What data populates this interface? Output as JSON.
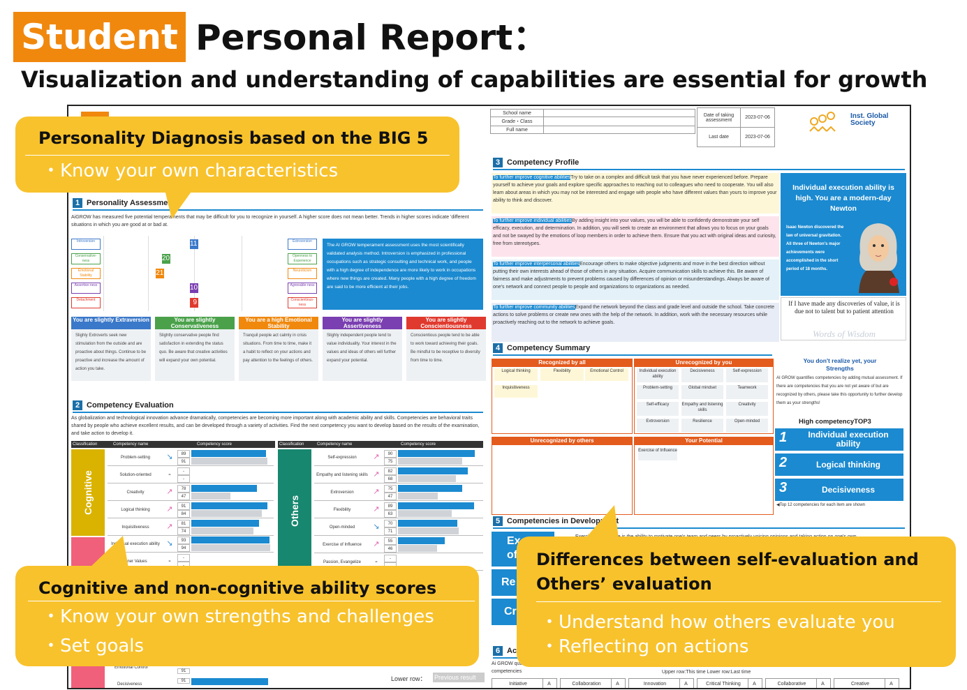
{
  "header": {
    "badge": "Student",
    "title": "Personal Report：",
    "subtitle": "Visualization and understanding of capabilities are essential for growth"
  },
  "colors": {
    "orange": "#f0880e",
    "callout": "#f8c22c",
    "blue": "#1b8ad0",
    "cognitive": "#d9b300",
    "others": "#18876f",
    "pink": "#f0607a"
  },
  "report": {
    "info": {
      "school_name": "School name",
      "grade_class": "Grade・Class",
      "full_name": "Full name",
      "date_label": "Date of taking assessment",
      "date_value": "2023-07-06",
      "last_label": "Last date",
      "last_value": "2023-07-06",
      "logo": "Inst. Global Society"
    },
    "sec1": {
      "num": "1",
      "title": "Personality Assessment",
      "intro": "AiGROW has measured five potential temperaments that may be difficult for you to recognize in yourself. A higher score does not mean better. Trends in higher scores indicate 'different situations in which you are good at or bad at.",
      "left_labels": [
        "Introversion",
        "Conservative-ness",
        "Emotional Stability",
        "Assertive-ness",
        "Detachment"
      ],
      "right_labels": [
        "Extroversion",
        "Openness to Experience",
        "Neuroticism",
        "Agreeable-ness",
        "Conscientious-ness"
      ],
      "scores": [
        11,
        20,
        21,
        10,
        9
      ],
      "info_text": "The AI GROW temperament assessment uses the most scientifically validated analysis method. Introversion is emphasized in professional occupations such as strategic consulting and technical work, and people with a high degree of independence are more likely to work in occupations where new things are created. Many people with a high degree of freedom are said to be more efficient at their jobs.",
      "traits": [
        {
          "title": "You are slightly Extraversion",
          "body": "Slighly Extroverts seek new stimulation from the outside and are proactive about things. Continue to be proactive and increase the amount of action you take.",
          "color": "#3a78c9"
        },
        {
          "title": "You are slightly Conservativeness",
          "body": "Slightly conservative people find satisfaction in extending the status quo. Be aware that creative activities will expand your own potential.",
          "color": "#4aa14a"
        },
        {
          "title": "You are a high Emotional Stability",
          "body": "Tranquil people act calmly in crisis situations. From time to time, make it a habit to reflect on your actions and pay attention to the feelings of others.",
          "color": "#f0880e"
        },
        {
          "title": "You are slightly Assertiveness",
          "body": "Slighly independent people tend to value individuality. Your interest in the values and ideas of others will further expand your potential.",
          "color": "#7a3fb0"
        },
        {
          "title": "You are slightly Conscientiousness",
          "body": "Conscientious people tend to be able to work toward achieving their goals. Be mindful to be receptive to diversity from time to time.",
          "color": "#e03a2e"
        }
      ]
    },
    "sec2": {
      "num": "2",
      "title": "Competency Evaluation",
      "intro": "As globalization and technological innovation advance dramatically, competencies are becoming more important along with academic ability and skills. Competencies are behavioral traits shared by people who achieve excellent results, and can be developed through a variety of activities. Find the next competency you want to develop based on the results of the examination, and take action to develop it.",
      "headers": [
        "Classification",
        "Competency name",
        "Competency score"
      ],
      "cognitive_label": "Cognitive",
      "others_label": "Others",
      "cognitive": [
        {
          "name": "Problem-setting",
          "arrow": "↘",
          "v1": "89",
          "v2": "91"
        },
        {
          "name": "Solution-oriented",
          "arrow": "-",
          "v1": "-",
          "v2": "-"
        },
        {
          "name": "Creativity",
          "arrow": "↗",
          "v1": "78",
          "v2": "47"
        },
        {
          "name": "Logical thinking",
          "arrow": "↗",
          "v1": "91",
          "v2": "84"
        },
        {
          "name": "Inquisitiveness",
          "arrow": "↗",
          "v1": "81",
          "v2": "74"
        }
      ],
      "pink": [
        {
          "name": "Individual execution ability",
          "arrow": "↘",
          "v1": "93",
          "v2": "94"
        },
        {
          "name": "Inner Values",
          "arrow": "-",
          "v1": "-",
          "v2": "-"
        }
      ],
      "others": [
        {
          "name": "Self-expression",
          "arrow": "↗",
          "v1": "90",
          "v2": "75"
        },
        {
          "name": "Empathy and listening skills",
          "arrow": "↗",
          "v1": "82",
          "v2": "68"
        },
        {
          "name": "Extroversion",
          "arrow": "↗",
          "v1": "75",
          "v2": "47"
        },
        {
          "name": "Flexibility",
          "arrow": "↗",
          "v1": "89",
          "v2": "63"
        },
        {
          "name": "Open-minded",
          "arrow": "↘",
          "v1": "70",
          "v2": "71"
        },
        {
          "name": "Exercise of Influence",
          "arrow": "↗",
          "v1": "55",
          "v2": "46"
        },
        {
          "name": "Passion, Evangelize",
          "arrow": "-",
          "v1": "-",
          "v2": "-"
        }
      ],
      "bottom_rows": [
        {
          "name": "Emotional Control",
          "v": "91"
        },
        {
          "name": "Decisiveness",
          "v": "91"
        }
      ],
      "lower_row": "Lower row：",
      "previous": "Previous result"
    },
    "sec3": {
      "num": "3",
      "title": "Competency Profile",
      "paras": [
        {
          "hl": "To further improve cognitive abilities",
          "text": "Try to take on a complex and difficult task that you have never experienced before. Prepare yourself to achieve your goals and explore specific approaches to reaching out to colleagues who need to cooperate. You will also learn about areas in which you may not be interested and engage with people who have different values than yours to improve your ability to think and discover."
        },
        {
          "hl": "To further improve individual abilities",
          "text": "By adding insight into your values, you will be able to confidently demonstrate your self efficacy, execution, and determination. In addition, you will seek to create an environment that allows you to focus on your goals and not be swayed by the emotions of loop members in order to achieve them. Ensure that you act with original ideas and curiosity, free from stereotypes."
        },
        {
          "hl": "To further improve interpersonal abilities",
          "text": "Encourage others to make objective judgments and move in the best direction without putting their own interests ahead of those of others in any situation. Acquire communication skills to achieve this. Be aware of fairness and make adjustments to prevent problems caused by differences of opinion or misunderstandings. Always be aware of one's network and connect people to people and organizations to organizations as needed."
        },
        {
          "hl": "To further improve community abilities",
          "text": "Expand the network beyond the class and grade level and outside the school. Take concrete actions to solve problems or create new ones with the help of the network. In addition, work with the necessary resources while proactively reaching out to the network to achieve goals."
        }
      ],
      "side_title": "Individual execution ability is high. You are a modern-day Newton",
      "side_body": "Isaac Newton discovered the law of universal gravitation. All three of Newton's major achievements were accomplished in the short period of 18 months.",
      "quote": "If I have made any discoveries of value, it is due not to talent but to patient attention",
      "quote_label": "Words of Wisdom"
    },
    "sec4": {
      "num": "4",
      "title": "Competency Summary",
      "recognized_head": "Recognized by all",
      "recognized": [
        "Logical thinking",
        "Flexibility",
        "Emotional Control",
        "Inquisitiveness"
      ],
      "unrecognized_head": "Unrecognized by you",
      "unrecognized": [
        "Individual execution ability",
        "Decisiveness",
        "Self-expression",
        "Problem-setting",
        "Global mindset",
        "Teamwork",
        "Self-efficacy",
        "Empathy and listening skills",
        "Creativity",
        "Extroversion",
        "Resilience",
        "Open-minded"
      ],
      "others_head": "Unrecognized by others",
      "potential_head": "Your Potential",
      "potential": [
        "Exercise of Influence"
      ],
      "side_title": "You don't realize yet, your Strengths",
      "side_body": "AI GROW quantifies competencies by adding mutual assessment. If there are competencies that you are not yet aware of but are recognized by others, please take this opportunity to further develop them as your strengths!",
      "top3_title": "High competencyTOP3",
      "top3": [
        {
          "n": "1",
          "label": "Individual execution ability"
        },
        {
          "n": "2",
          "label": "Logical thinking"
        },
        {
          "n": "3",
          "label": "Decisiveness"
        }
      ],
      "footnote": "◀Top 12 competencies for each item are shown"
    },
    "sec5": {
      "num": "5",
      "title": "Competencies in Development",
      "tabs": [
        "Exe",
        "of",
        "Re",
        "Cr"
      ],
      "text": "Exercise of influence is the ability to motivate one's team and peers by proactively voicing opinions and taking action on one's own."
    },
    "sec6": {
      "num": "6",
      "title": "Ac",
      "text": "Ai GROW quantifies competencies. Please refer to the following six competencies",
      "upper": "Upper row:This time   Lower row:Last time",
      "items": [
        {
          "name": "Initiative",
          "v": "A"
        },
        {
          "name": "Collaboration",
          "v": "A"
        },
        {
          "name": "Innovation",
          "v": "A"
        },
        {
          "name": "Critical Thinking",
          "v": "A"
        },
        {
          "name": "Collaborative",
          "v": "A"
        },
        {
          "name": "Creative",
          "v": "A"
        }
      ]
    }
  },
  "callouts": {
    "big5": {
      "title": "Personality Diagnosis based on the BIG 5",
      "items": [
        "・Know your own characteristics"
      ]
    },
    "scores": {
      "title": "Cognitive and non-cognitive ability scores",
      "items": [
        "・Know your own strengths and challenges",
        "・Set goals"
      ]
    },
    "diff": {
      "title": "Differences between self-evaluation and Others’ evaluation",
      "items": [
        "・Understand how others evaluate you",
        "・Reflecting on actions"
      ]
    }
  }
}
